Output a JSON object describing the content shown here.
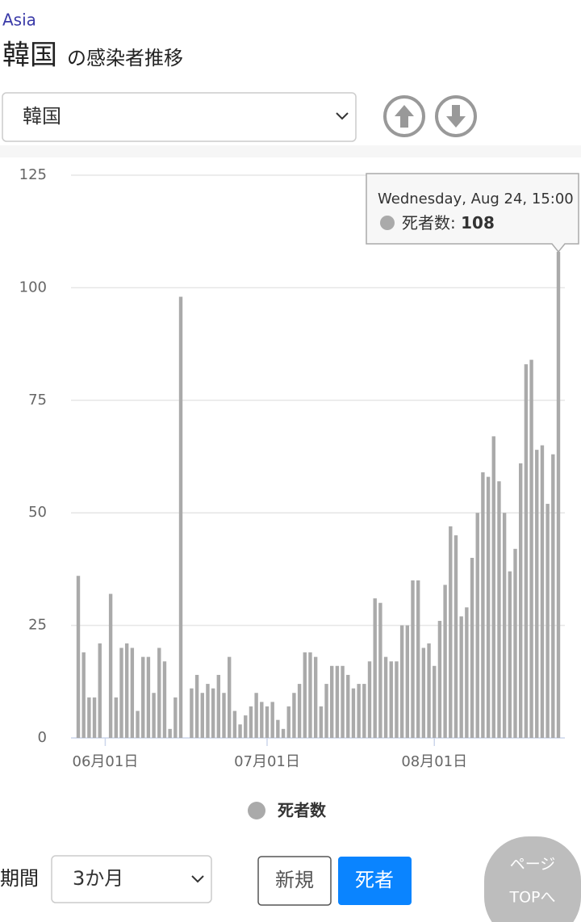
{
  "header": {
    "region": "Asia",
    "country": "韓国",
    "title_suffix": "の感染者推移"
  },
  "country_select": "韓国",
  "chart_data": {
    "type": "bar",
    "categories": [
      null,
      null,
      null,
      null,
      null,
      "06月01日",
      null,
      null,
      null,
      null,
      null,
      null,
      null,
      null,
      null,
      null,
      null,
      null,
      null,
      null,
      null,
      null,
      null,
      null,
      null,
      null,
      null,
      null,
      null,
      null,
      null,
      null,
      null,
      null,
      null,
      "07月01日",
      null,
      null,
      null,
      null,
      null,
      null,
      null,
      null,
      null,
      null,
      null,
      null,
      null,
      null,
      null,
      null,
      null,
      null,
      null,
      null,
      null,
      null,
      null,
      null,
      null,
      null,
      null,
      null,
      null,
      null,
      "08月01日",
      null,
      null,
      null,
      null,
      null,
      null,
      null,
      null,
      null,
      null,
      null,
      null,
      null,
      null,
      null,
      null,
      null,
      null,
      null,
      null,
      null,
      null,
      null
    ],
    "series": [
      {
        "name": "死者数",
        "color": "#aaaaaa",
        "values": [
          36,
          19,
          9,
          9,
          21,
          0,
          32,
          9,
          20,
          21,
          20,
          6,
          18,
          18,
          10,
          20,
          17,
          2,
          9,
          98,
          0,
          11,
          14,
          10,
          12,
          11,
          14,
          10,
          18,
          6,
          3,
          5,
          7,
          10,
          8,
          7,
          8,
          4,
          2,
          7,
          10,
          12,
          19,
          19,
          18,
          7,
          12,
          16,
          16,
          16,
          14,
          11,
          12,
          12,
          17,
          31,
          30,
          18,
          17,
          17,
          25,
          25,
          35,
          35,
          20,
          21,
          16,
          26,
          34,
          47,
          45,
          27,
          29,
          40,
          50,
          59,
          58,
          67,
          57,
          50,
          37,
          42,
          61,
          83,
          84,
          64,
          65,
          52,
          63,
          108
        ]
      }
    ],
    "ylim": [
      0,
      125
    ],
    "yticks": [
      0,
      25,
      50,
      75,
      100,
      125
    ],
    "grid": true,
    "tooltip_title": "Wednesday, Aug 24, 15:00"
  },
  "controls": {
    "period_label": "期間",
    "period": "3か月",
    "buttons": [
      "新規",
      "死者"
    ],
    "page_top": [
      "ページ",
      "TOPへ"
    ]
  }
}
